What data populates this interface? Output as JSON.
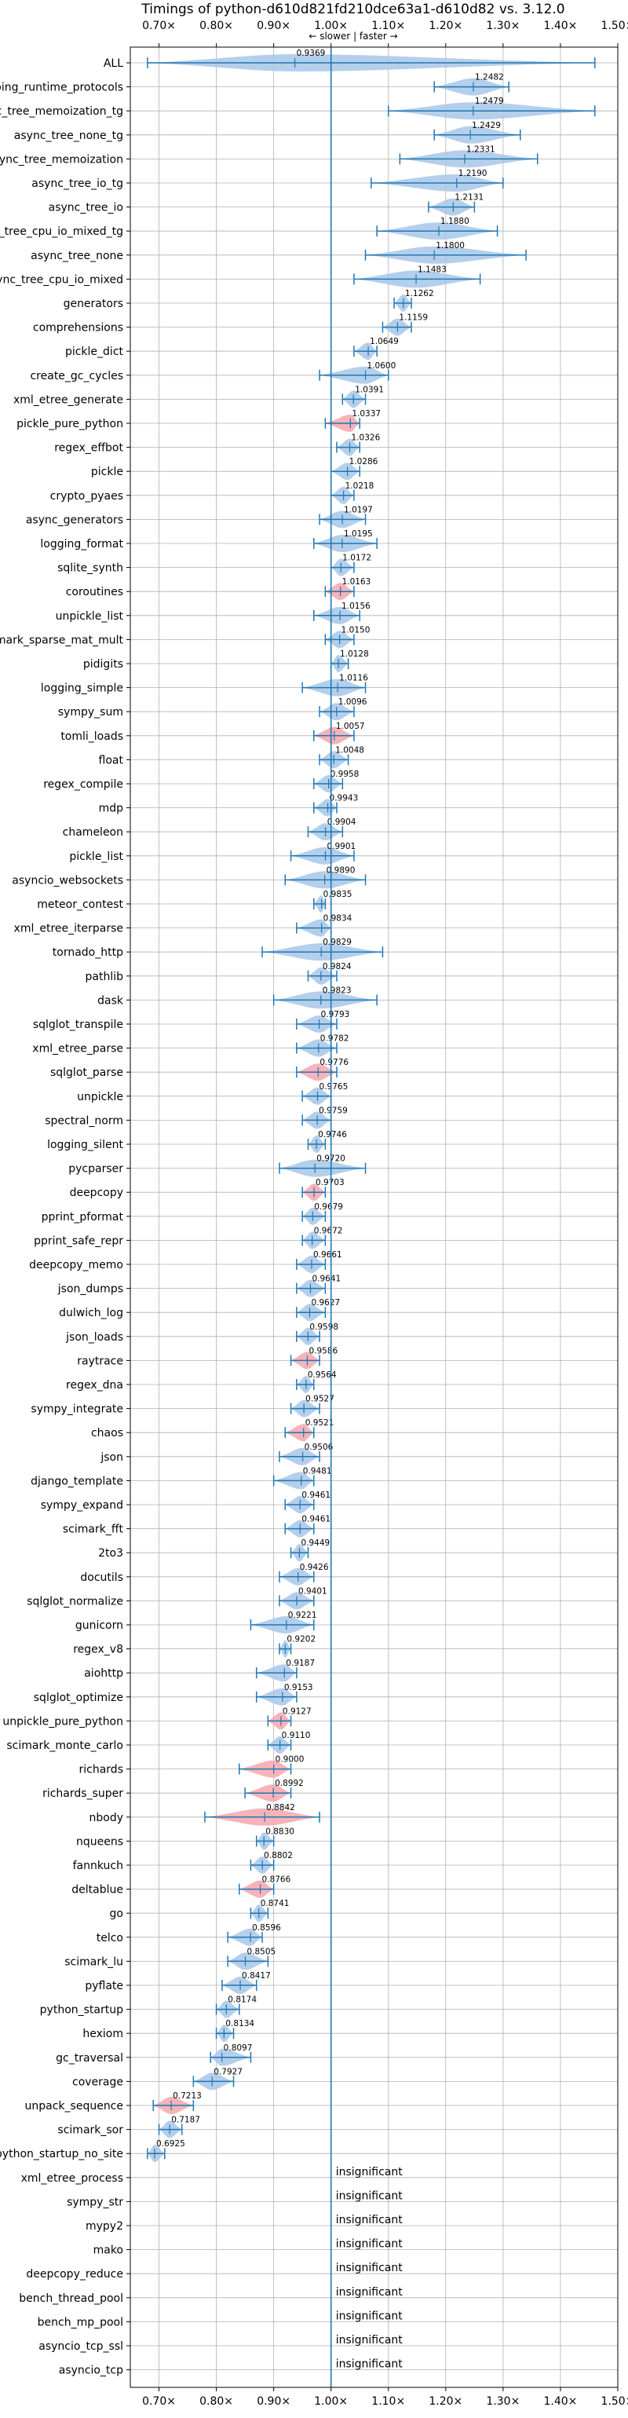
{
  "colors": {
    "faster": "#a7c7e7",
    "slower": "#f4a6ad",
    "line": "#1f77b4",
    "grid": "#b0b0b0"
  },
  "chart_data": {
    "type": "violin",
    "title": "Timings of python-d610d821fd210dce63a1-d610d82 vs. 3.12.0",
    "subtitle": "← slower | faster →",
    "x_ticks": [
      "0.70×",
      "0.80×",
      "0.90×",
      "1.00×",
      "1.10×",
      "1.20×",
      "1.30×",
      "1.40×",
      "1.50×"
    ],
    "x_tick_values": [
      0.7,
      0.8,
      0.9,
      1.0,
      1.1,
      1.2,
      1.3,
      1.4,
      1.5
    ],
    "xlim": [
      0.65,
      1.5
    ],
    "reference_line": 1.0,
    "insignificant_label": "insignificant",
    "benchmarks": [
      {
        "name": "ALL",
        "value": 0.9369,
        "label": "0.9369",
        "lo": 0.68,
        "hi": 1.46
      },
      {
        "name": "typing_runtime_protocols",
        "value": 1.2482,
        "label": "1.2482",
        "lo": 1.18,
        "hi": 1.31
      },
      {
        "name": "async_tree_memoization_tg",
        "value": 1.2479,
        "label": "1.2479",
        "lo": 1.1,
        "hi": 1.46
      },
      {
        "name": "async_tree_none_tg",
        "value": 1.2429,
        "label": "1.2429",
        "lo": 1.18,
        "hi": 1.33
      },
      {
        "name": "async_tree_memoization",
        "value": 1.2331,
        "label": "1.2331",
        "lo": 1.12,
        "hi": 1.36
      },
      {
        "name": "async_tree_io_tg",
        "value": 1.219,
        "label": "1.2190",
        "lo": 1.07,
        "hi": 1.3
      },
      {
        "name": "async_tree_io",
        "value": 1.2131,
        "label": "1.2131",
        "lo": 1.17,
        "hi": 1.25
      },
      {
        "name": "async_tree_cpu_io_mixed_tg",
        "value": 1.188,
        "label": "1.1880",
        "lo": 1.08,
        "hi": 1.29
      },
      {
        "name": "async_tree_none",
        "value": 1.18,
        "label": "1.1800",
        "lo": 1.06,
        "hi": 1.34
      },
      {
        "name": "async_tree_cpu_io_mixed",
        "value": 1.1483,
        "label": "1.1483",
        "lo": 1.04,
        "hi": 1.26
      },
      {
        "name": "generators",
        "value": 1.1262,
        "label": "1.1262",
        "lo": 1.11,
        "hi": 1.14
      },
      {
        "name": "comprehensions",
        "value": 1.1159,
        "label": "1.1159",
        "lo": 1.09,
        "hi": 1.14
      },
      {
        "name": "pickle_dict",
        "value": 1.0649,
        "label": "1.0649",
        "lo": 1.04,
        "hi": 1.08
      },
      {
        "name": "create_gc_cycles",
        "value": 1.06,
        "label": "1.0600",
        "lo": 0.98,
        "hi": 1.1
      },
      {
        "name": "xml_etree_generate",
        "value": 1.0391,
        "label": "1.0391",
        "lo": 1.02,
        "hi": 1.06
      },
      {
        "name": "pickle_pure_python",
        "value": 1.0337,
        "label": "1.0337",
        "lo": 0.99,
        "hi": 1.05,
        "slower": true
      },
      {
        "name": "regex_effbot",
        "value": 1.0326,
        "label": "1.0326",
        "lo": 1.01,
        "hi": 1.05
      },
      {
        "name": "pickle",
        "value": 1.0286,
        "label": "1.0286",
        "lo": 1.0,
        "hi": 1.05
      },
      {
        "name": "crypto_pyaes",
        "value": 1.0218,
        "label": "1.0218",
        "lo": 1.0,
        "hi": 1.04
      },
      {
        "name": "async_generators",
        "value": 1.0197,
        "label": "1.0197",
        "lo": 0.98,
        "hi": 1.06
      },
      {
        "name": "logging_format",
        "value": 1.0195,
        "label": "1.0195",
        "lo": 0.97,
        "hi": 1.08
      },
      {
        "name": "sqlite_synth",
        "value": 1.0172,
        "label": "1.0172",
        "lo": 1.0,
        "hi": 1.04
      },
      {
        "name": "coroutines",
        "value": 1.0163,
        "label": "1.0163",
        "lo": 0.99,
        "hi": 1.04,
        "slower": true
      },
      {
        "name": "unpickle_list",
        "value": 1.0156,
        "label": "1.0156",
        "lo": 0.97,
        "hi": 1.05
      },
      {
        "name": "scimark_sparse_mat_mult",
        "value": 1.015,
        "label": "1.0150",
        "lo": 0.99,
        "hi": 1.04
      },
      {
        "name": "pidigits",
        "value": 1.0128,
        "label": "1.0128",
        "lo": 1.0,
        "hi": 1.03
      },
      {
        "name": "logging_simple",
        "value": 1.0116,
        "label": "1.0116",
        "lo": 0.95,
        "hi": 1.06
      },
      {
        "name": "sympy_sum",
        "value": 1.0096,
        "label": "1.0096",
        "lo": 0.98,
        "hi": 1.04
      },
      {
        "name": "tomli_loads",
        "value": 1.0057,
        "label": "1.0057",
        "lo": 0.97,
        "hi": 1.04,
        "slower": true
      },
      {
        "name": "float",
        "value": 1.0048,
        "label": "1.0048",
        "lo": 0.98,
        "hi": 1.03
      },
      {
        "name": "regex_compile",
        "value": 0.9958,
        "label": "0.9958",
        "lo": 0.97,
        "hi": 1.02
      },
      {
        "name": "mdp",
        "value": 0.9943,
        "label": "0.9943",
        "lo": 0.97,
        "hi": 1.01
      },
      {
        "name": "chameleon",
        "value": 0.9904,
        "label": "0.9904",
        "lo": 0.96,
        "hi": 1.02
      },
      {
        "name": "pickle_list",
        "value": 0.9901,
        "label": "0.9901",
        "lo": 0.93,
        "hi": 1.04
      },
      {
        "name": "asyncio_websockets",
        "value": 0.989,
        "label": "0.9890",
        "lo": 0.92,
        "hi": 1.06
      },
      {
        "name": "meteor_contest",
        "value": 0.9835,
        "label": "0.9835",
        "lo": 0.97,
        "hi": 0.99
      },
      {
        "name": "xml_etree_iterparse",
        "value": 0.9834,
        "label": "0.9834",
        "lo": 0.94,
        "hi": 1.0
      },
      {
        "name": "tornado_http",
        "value": 0.9829,
        "label": "0.9829",
        "lo": 0.88,
        "hi": 1.09
      },
      {
        "name": "pathlib",
        "value": 0.9824,
        "label": "0.9824",
        "lo": 0.96,
        "hi": 1.01
      },
      {
        "name": "dask",
        "value": 0.9823,
        "label": "0.9823",
        "lo": 0.9,
        "hi": 1.08
      },
      {
        "name": "sqlglot_transpile",
        "value": 0.9793,
        "label": "0.9793",
        "lo": 0.94,
        "hi": 1.01
      },
      {
        "name": "xml_etree_parse",
        "value": 0.9782,
        "label": "0.9782",
        "lo": 0.94,
        "hi": 1.01
      },
      {
        "name": "sqlglot_parse",
        "value": 0.9776,
        "label": "0.9776",
        "lo": 0.94,
        "hi": 1.01,
        "slower": true
      },
      {
        "name": "unpickle",
        "value": 0.9765,
        "label": "0.9765",
        "lo": 0.95,
        "hi": 1.0
      },
      {
        "name": "spectral_norm",
        "value": 0.9759,
        "label": "0.9759",
        "lo": 0.95,
        "hi": 1.0
      },
      {
        "name": "logging_silent",
        "value": 0.9746,
        "label": "0.9746",
        "lo": 0.96,
        "hi": 0.99
      },
      {
        "name": "pycparser",
        "value": 0.972,
        "label": "0.9720",
        "lo": 0.91,
        "hi": 1.06
      },
      {
        "name": "deepcopy",
        "value": 0.9703,
        "label": "0.9703",
        "lo": 0.95,
        "hi": 0.99,
        "slower": true
      },
      {
        "name": "pprint_pformat",
        "value": 0.9679,
        "label": "0.9679",
        "lo": 0.95,
        "hi": 0.99
      },
      {
        "name": "pprint_safe_repr",
        "value": 0.9672,
        "label": "0.9672",
        "lo": 0.95,
        "hi": 0.99
      },
      {
        "name": "deepcopy_memo",
        "value": 0.9661,
        "label": "0.9661",
        "lo": 0.94,
        "hi": 0.99
      },
      {
        "name": "json_dumps",
        "value": 0.9641,
        "label": "0.9641",
        "lo": 0.94,
        "hi": 0.99
      },
      {
        "name": "dulwich_log",
        "value": 0.9627,
        "label": "0.9627",
        "lo": 0.94,
        "hi": 0.99
      },
      {
        "name": "json_loads",
        "value": 0.9598,
        "label": "0.9598",
        "lo": 0.94,
        "hi": 0.98
      },
      {
        "name": "raytrace",
        "value": 0.9586,
        "label": "0.9586",
        "lo": 0.93,
        "hi": 0.98,
        "slower": true
      },
      {
        "name": "regex_dna",
        "value": 0.9564,
        "label": "0.9564",
        "lo": 0.94,
        "hi": 0.97
      },
      {
        "name": "sympy_integrate",
        "value": 0.9527,
        "label": "0.9527",
        "lo": 0.93,
        "hi": 0.98
      },
      {
        "name": "chaos",
        "value": 0.9521,
        "label": "0.9521",
        "lo": 0.92,
        "hi": 0.97,
        "slower": true
      },
      {
        "name": "json",
        "value": 0.9506,
        "label": "0.9506",
        "lo": 0.91,
        "hi": 0.98
      },
      {
        "name": "django_template",
        "value": 0.9481,
        "label": "0.9481",
        "lo": 0.9,
        "hi": 0.97
      },
      {
        "name": "sympy_expand",
        "value": 0.9461,
        "label": "0.9461",
        "lo": 0.92,
        "hi": 0.97
      },
      {
        "name": "scimark_fft",
        "value": 0.9461,
        "label": "0.9461",
        "lo": 0.92,
        "hi": 0.97
      },
      {
        "name": "2to3",
        "value": 0.9449,
        "label": "0.9449",
        "lo": 0.93,
        "hi": 0.96
      },
      {
        "name": "docutils",
        "value": 0.9426,
        "label": "0.9426",
        "lo": 0.91,
        "hi": 0.97
      },
      {
        "name": "sqlglot_normalize",
        "value": 0.9401,
        "label": "0.9401",
        "lo": 0.91,
        "hi": 0.97
      },
      {
        "name": "gunicorn",
        "value": 0.9221,
        "label": "0.9221",
        "lo": 0.86,
        "hi": 0.97
      },
      {
        "name": "regex_v8",
        "value": 0.9202,
        "label": "0.9202",
        "lo": 0.91,
        "hi": 0.93
      },
      {
        "name": "aiohttp",
        "value": 0.9187,
        "label": "0.9187",
        "lo": 0.87,
        "hi": 0.94
      },
      {
        "name": "sqlglot_optimize",
        "value": 0.9153,
        "label": "0.9153",
        "lo": 0.87,
        "hi": 0.94
      },
      {
        "name": "unpickle_pure_python",
        "value": 0.9127,
        "label": "0.9127",
        "lo": 0.89,
        "hi": 0.93,
        "slower": true
      },
      {
        "name": "scimark_monte_carlo",
        "value": 0.911,
        "label": "0.9110",
        "lo": 0.89,
        "hi": 0.93
      },
      {
        "name": "richards",
        "value": 0.9,
        "label": "0.9000",
        "lo": 0.84,
        "hi": 0.93,
        "slower": true
      },
      {
        "name": "richards_super",
        "value": 0.8992,
        "label": "0.8992",
        "lo": 0.85,
        "hi": 0.93,
        "slower": true
      },
      {
        "name": "nbody",
        "value": 0.8842,
        "label": "0.8842",
        "lo": 0.78,
        "hi": 0.98,
        "slower": true
      },
      {
        "name": "nqueens",
        "value": 0.883,
        "label": "0.8830",
        "lo": 0.87,
        "hi": 0.9
      },
      {
        "name": "fannkuch",
        "value": 0.8802,
        "label": "0.8802",
        "lo": 0.86,
        "hi": 0.9
      },
      {
        "name": "deltablue",
        "value": 0.8766,
        "label": "0.8766",
        "lo": 0.84,
        "hi": 0.9,
        "slower": true
      },
      {
        "name": "go",
        "value": 0.8741,
        "label": "0.8741",
        "lo": 0.86,
        "hi": 0.89
      },
      {
        "name": "telco",
        "value": 0.8596,
        "label": "0.8596",
        "lo": 0.82,
        "hi": 0.88
      },
      {
        "name": "scimark_lu",
        "value": 0.8505,
        "label": "0.8505",
        "lo": 0.82,
        "hi": 0.89
      },
      {
        "name": "pyflate",
        "value": 0.8417,
        "label": "0.8417",
        "lo": 0.81,
        "hi": 0.87
      },
      {
        "name": "python_startup",
        "value": 0.8174,
        "label": "0.8174",
        "lo": 0.8,
        "hi": 0.84
      },
      {
        "name": "hexiom",
        "value": 0.8134,
        "label": "0.8134",
        "lo": 0.8,
        "hi": 0.83
      },
      {
        "name": "gc_traversal",
        "value": 0.8097,
        "label": "0.8097",
        "lo": 0.79,
        "hi": 0.86
      },
      {
        "name": "coverage",
        "value": 0.7927,
        "label": "0.7927",
        "lo": 0.76,
        "hi": 0.83
      },
      {
        "name": "unpack_sequence",
        "value": 0.7213,
        "label": "0.7213",
        "lo": 0.69,
        "hi": 0.76,
        "slower": true
      },
      {
        "name": "scimark_sor",
        "value": 0.7187,
        "label": "0.7187",
        "lo": 0.7,
        "hi": 0.74
      },
      {
        "name": "python_startup_no_site",
        "value": 0.6925,
        "label": "0.6925",
        "lo": 0.68,
        "hi": 0.71
      },
      {
        "name": "xml_etree_process",
        "insignificant": true
      },
      {
        "name": "sympy_str",
        "insignificant": true
      },
      {
        "name": "mypy2",
        "insignificant": true
      },
      {
        "name": "mako",
        "insignificant": true
      },
      {
        "name": "deepcopy_reduce",
        "insignificant": true
      },
      {
        "name": "bench_thread_pool",
        "insignificant": true
      },
      {
        "name": "bench_mp_pool",
        "insignificant": true
      },
      {
        "name": "asyncio_tcp_ssl",
        "insignificant": true
      },
      {
        "name": "asyncio_tcp",
        "insignificant": true
      }
    ]
  }
}
